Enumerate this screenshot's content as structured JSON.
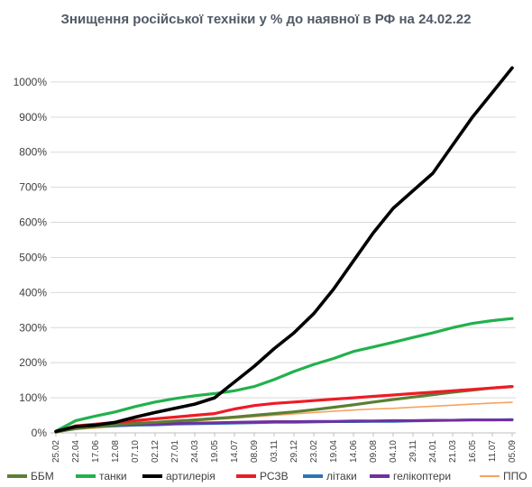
{
  "chart_data": {
    "type": "line",
    "title": "Знищення російської техніки у % до наявної в РФ на 24.02.22",
    "xlabel": "",
    "ylabel": "",
    "ylim": [
      0,
      1000
    ],
    "yticks": [
      "0%",
      "100%",
      "200%",
      "300%",
      "400%",
      "500%",
      "600%",
      "700%",
      "800%",
      "900%",
      "1000%"
    ],
    "grid": "horizontal",
    "legend": "bottom",
    "categories": [
      "25.02",
      "22.04",
      "17.06",
      "12.08",
      "07.10",
      "02.12",
      "27.01",
      "24.03",
      "19.05",
      "14.07",
      "08.09",
      "03.11",
      "29.12",
      "23.02",
      "19.04",
      "14.06",
      "09.08",
      "04.10",
      "29.11",
      "24.01",
      "21.03",
      "16.05",
      "11.07",
      "05.09"
    ],
    "series": [
      {
        "name": "ББМ",
        "color": "#5b7f34",
        "values": [
          3,
          12,
          18,
          23,
          27,
          30,
          34,
          37,
          41,
          45,
          50,
          55,
          60,
          66,
          73,
          80,
          88,
          95,
          102,
          109,
          116,
          122,
          128,
          132
        ]
      },
      {
        "name": "танки",
        "color": "#22b14c",
        "values": [
          5,
          35,
          48,
          60,
          75,
          88,
          98,
          106,
          112,
          120,
          132,
          152,
          175,
          195,
          212,
          232,
          245,
          258,
          272,
          285,
          300,
          312,
          320,
          326
        ]
      },
      {
        "name": "артилерія",
        "color": "#000000",
        "values": [
          4,
          18,
          22,
          30,
          45,
          58,
          70,
          82,
          100,
          145,
          190,
          240,
          285,
          340,
          410,
          490,
          570,
          640,
          690,
          740,
          820,
          900,
          970,
          1040
        ]
      },
      {
        "name": "РСЗВ",
        "color": "#ee1c25",
        "values": [
          3,
          20,
          25,
          30,
          35,
          40,
          45,
          50,
          55,
          68,
          78,
          84,
          88,
          92,
          96,
          100,
          104,
          108,
          112,
          116,
          120,
          124,
          128,
          132
        ]
      },
      {
        "name": "літаки",
        "color": "#2e74b5",
        "values": [
          2,
          15,
          18,
          20,
          22,
          23,
          25,
          26,
          27,
          28,
          29,
          30,
          30,
          31,
          32,
          32,
          33,
          33,
          34,
          35,
          36,
          37,
          37,
          38
        ]
      },
      {
        "name": "гелікоптери",
        "color": "#7030a0",
        "values": [
          2,
          17,
          20,
          22,
          24,
          25,
          27,
          28,
          29,
          30,
          31,
          32,
          32,
          33,
          33,
          34,
          34,
          35,
          35,
          36,
          36,
          37,
          37,
          37
        ]
      },
      {
        "name": "ППО",
        "color": "#f4a460",
        "values": [
          1,
          10,
          14,
          18,
          22,
          26,
          30,
          34,
          38,
          42,
          46,
          50,
          54,
          58,
          62,
          65,
          68,
          70,
          73,
          76,
          79,
          82,
          85,
          87
        ]
      }
    ]
  }
}
